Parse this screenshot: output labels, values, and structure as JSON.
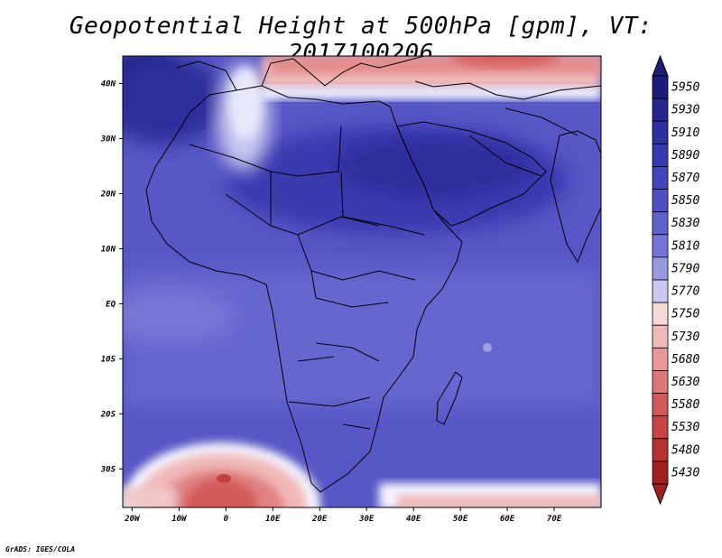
{
  "title": "Geopotential Height at 500hPa [gpm], VT: 2017100206",
  "credit": "GrADS: IGES/COLA",
  "lat_labels": [
    "40N",
    "30N",
    "20N",
    "10N",
    "EQ",
    "10S",
    "20S",
    "30S"
  ],
  "lat_values": [
    40,
    30,
    20,
    10,
    0,
    -10,
    -20,
    -30
  ],
  "lon_labels": [
    "20W",
    "10W",
    "0",
    "10E",
    "20E",
    "30E",
    "40E",
    "50E",
    "60E",
    "70E"
  ],
  "lon_values": [
    -20,
    -10,
    0,
    10,
    20,
    30,
    40,
    50,
    60,
    70
  ],
  "extent": {
    "lon_min": -22,
    "lon_max": 80,
    "lat_min": -37,
    "lat_max": 45
  },
  "colorbar": {
    "levels": [
      "5950",
      "5930",
      "5910",
      "5890",
      "5870",
      "5850",
      "5830",
      "5810",
      "5790",
      "5770",
      "5750",
      "5730",
      "5680",
      "5630",
      "5580",
      "5530",
      "5480",
      "5430"
    ],
    "colors": [
      "#1c1c7a",
      "#26268e",
      "#2f2fa0",
      "#3838ae",
      "#4343ba",
      "#5050c4",
      "#6060cc",
      "#7474d6",
      "#9a9ae2",
      "#c8c8f0",
      "#f5dada",
      "#f0b8b8",
      "#e89898",
      "#de7878",
      "#d45a5a",
      "#c84242",
      "#b83030",
      "#a02020"
    ]
  }
}
